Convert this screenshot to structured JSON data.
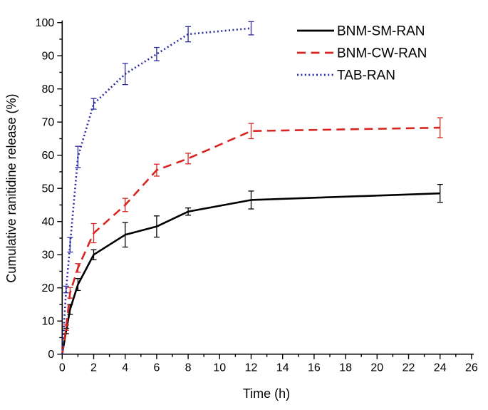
{
  "chart_data": {
    "type": "line",
    "title": "",
    "xlabel": "Time (h)",
    "ylabel": "Cumulative ranitidine release (%)",
    "xlim": [
      0,
      26
    ],
    "ylim": [
      0,
      100
    ],
    "x_major_tick": 2,
    "x_minor_tick": 1,
    "y_major_tick": 10,
    "y_minor_tick": 5,
    "x_tick_labels": [
      "0",
      "2",
      "4",
      "6",
      "8",
      "10",
      "12",
      "14",
      "16",
      "18",
      "20",
      "22",
      "24",
      "26"
    ],
    "y_tick_labels": [
      "0",
      "10",
      "20",
      "30",
      "40",
      "50",
      "60",
      "70",
      "80",
      "90",
      "100"
    ],
    "grid": false,
    "legend_position": "top-right-inside",
    "axis_color": "#000000",
    "series": [
      {
        "name": "BNM-SM-RAN",
        "color": "#000000",
        "line_style": "solid",
        "x": [
          0,
          0.25,
          0.5,
          1,
          2,
          4,
          6,
          8,
          12,
          24
        ],
        "y": [
          0,
          7,
          13.5,
          21,
          30,
          36,
          38.5,
          43,
          46.5,
          48.5
        ],
        "yerr": [
          0,
          0.8,
          1.5,
          1.8,
          1.5,
          3.7,
          3.2,
          1.1,
          2.7,
          2.7
        ]
      },
      {
        "name": "BNM-CW-RAN",
        "color": "#d82520",
        "line_style": "dashed",
        "x": [
          0,
          0.25,
          0.5,
          1,
          2,
          4,
          6,
          8,
          12,
          24
        ],
        "y": [
          0,
          8,
          18.5,
          26,
          36.5,
          45,
          55.5,
          59,
          67.3,
          68.3
        ],
        "yerr": [
          0,
          0.8,
          1.6,
          1.3,
          2.9,
          2.0,
          1.8,
          1.6,
          2.3,
          3.0
        ]
      },
      {
        "name": "TAB-RAN",
        "color": "#2b2b9e",
        "line_style": "dotted",
        "x": [
          0,
          0.25,
          0.5,
          1,
          2,
          4,
          6,
          8,
          12
        ],
        "y": [
          0,
          19.5,
          33,
          59.5,
          75.5,
          84.5,
          90.5,
          96.5,
          98.3
        ],
        "yerr": [
          0,
          1.0,
          2.2,
          3.2,
          1.6,
          3.2,
          2.0,
          2.3,
          2.0
        ]
      }
    ]
  }
}
